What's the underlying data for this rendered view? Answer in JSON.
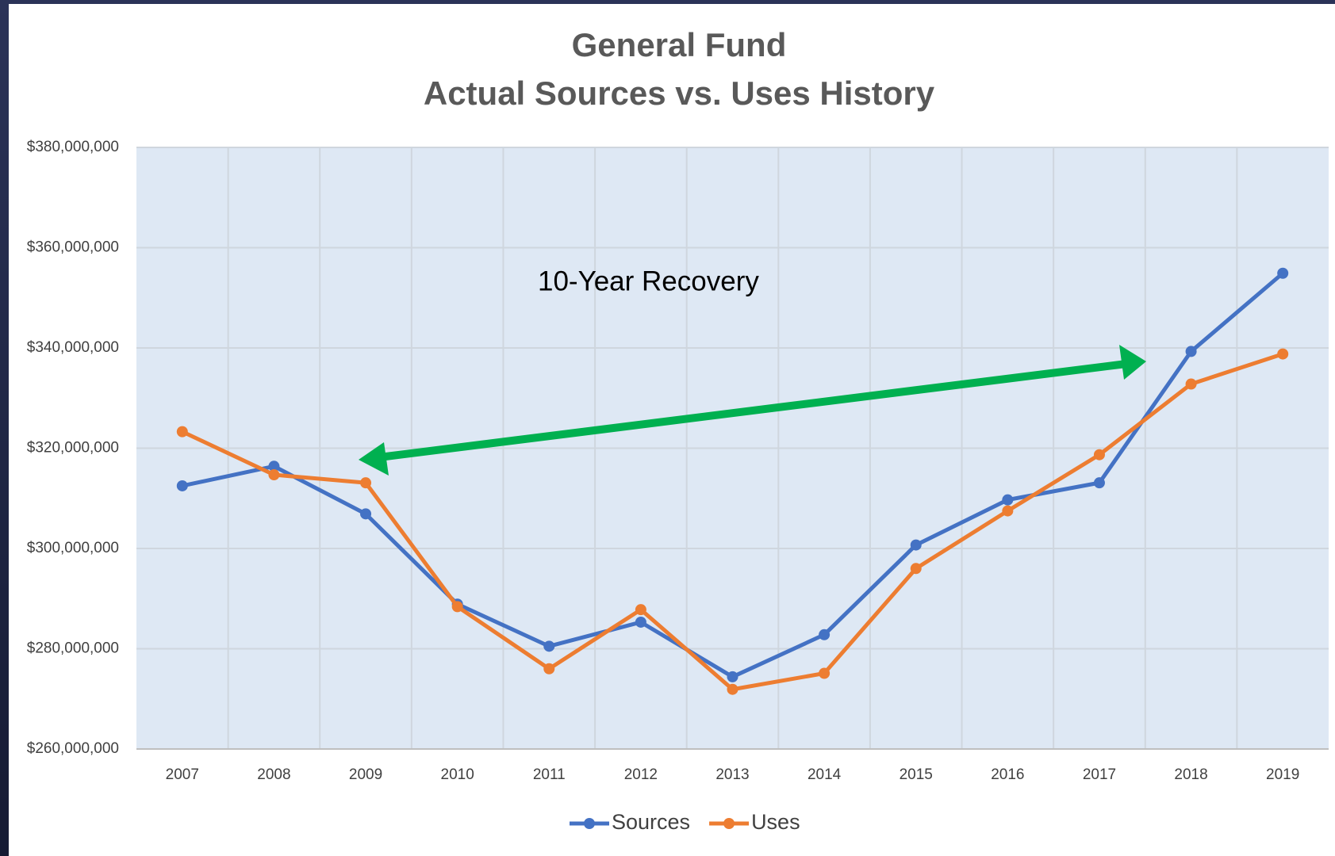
{
  "chart_data": {
    "type": "line",
    "title": "General Fund",
    "subtitle": "Actual Sources vs. Uses History",
    "annotation": "10-Year Recovery",
    "categories": [
      "2007",
      "2008",
      "2009",
      "2010",
      "2011",
      "2012",
      "2013",
      "2014",
      "2015",
      "2016",
      "2017",
      "2018",
      "2019"
    ],
    "series": [
      {
        "name": "Sources",
        "color": "#4472c4",
        "values": [
          312500000,
          316400000,
          306900000,
          288900000,
          280500000,
          285300000,
          274400000,
          282800000,
          300700000,
          309700000,
          313100000,
          339300000,
          354900000
        ]
      },
      {
        "name": "Uses",
        "color": "#ed7d31",
        "values": [
          323300000,
          314700000,
          313100000,
          288400000,
          276000000,
          287800000,
          271900000,
          275100000,
          296000000,
          307500000,
          318700000,
          332800000,
          338800000
        ]
      }
    ],
    "ylim": [
      260000000,
      380000000
    ],
    "yticks": [
      {
        "value": 260000000,
        "label": "$260,000,000"
      },
      {
        "value": 280000000,
        "label": "$280,000,000"
      },
      {
        "value": 300000000,
        "label": "$300,000,000"
      },
      {
        "value": 320000000,
        "label": "$320,000,000"
      },
      {
        "value": 340000000,
        "label": "$340,000,000"
      },
      {
        "value": 360000000,
        "label": "$360,000,000"
      },
      {
        "value": 380000000,
        "label": "$380,000,000"
      }
    ],
    "grid": true,
    "legend": "bottom"
  }
}
